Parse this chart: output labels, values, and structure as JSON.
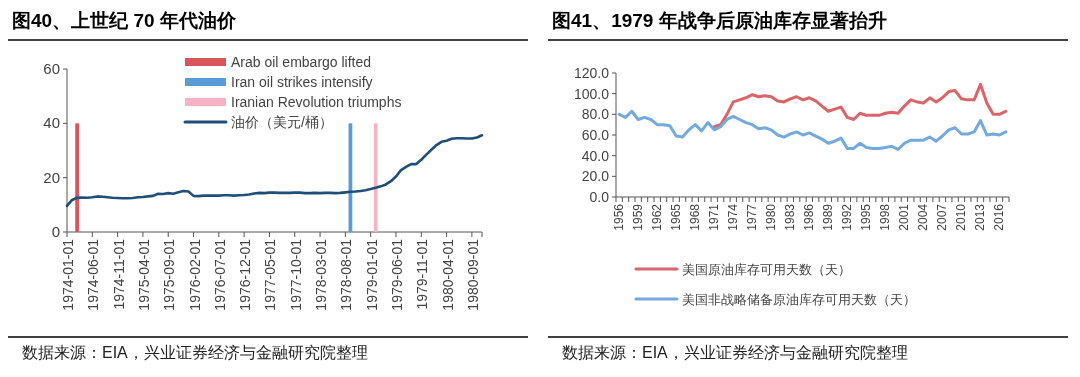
{
  "chart_data": [
    {
      "type": "line",
      "title": "图40、上世纪 70 年代油价",
      "annotations": [
        "数据来源：EIA，兴业证券经济与金融研究院整理"
      ],
      "categories": [
        "1974-01-01",
        null,
        null,
        null,
        null,
        "1974-06-01",
        null,
        null,
        null,
        null,
        "1974-11-01",
        null,
        null,
        null,
        null,
        "1975-04-01",
        null,
        null,
        null,
        null,
        "1975-09-01",
        null,
        null,
        null,
        null,
        "1976-02-01",
        null,
        null,
        null,
        null,
        "1976-07-01",
        null,
        null,
        null,
        null,
        "1976-12-01",
        null,
        null,
        null,
        null,
        "1977-05-01",
        null,
        null,
        null,
        null,
        "1977-10-01",
        null,
        null,
        null,
        null,
        "1978-03-01",
        null,
        null,
        null,
        null,
        "1978-08-01",
        null,
        null,
        null,
        null,
        "1979-01-01",
        null,
        null,
        null,
        null,
        "1979-06-01",
        null,
        null,
        null,
        null,
        "1979-11-01",
        null,
        null,
        null,
        null,
        "1980-04-01",
        null,
        null,
        null,
        null,
        "1980-09-01",
        null,
        null
      ],
      "series": [
        {
          "name": "Arab oil embargo lifted",
          "type": "bar",
          "color": "#d9575a",
          "values": [
            null,
            null,
            40,
            null,
            null,
            null,
            null,
            null,
            null,
            null,
            null,
            null,
            null,
            null,
            null,
            null,
            null,
            null,
            null,
            null,
            null,
            null,
            null,
            null,
            null,
            null,
            null,
            null,
            null,
            null,
            null,
            null,
            null,
            null,
            null,
            null,
            null,
            null,
            null,
            null,
            null,
            null,
            null,
            null,
            null,
            null,
            null,
            null,
            null,
            null,
            null,
            null,
            null,
            null,
            null,
            null,
            null,
            null,
            null,
            null,
            null,
            null,
            null,
            null,
            null,
            null,
            null,
            null,
            null,
            null,
            null,
            null,
            null,
            null,
            null,
            null,
            null,
            null,
            null,
            null,
            null,
            null,
            null
          ]
        },
        {
          "name": "Iran oil strikes intensify",
          "type": "bar",
          "color": "#5b9bd5",
          "values": [
            null,
            null,
            null,
            null,
            null,
            null,
            null,
            null,
            null,
            null,
            null,
            null,
            null,
            null,
            null,
            null,
            null,
            null,
            null,
            null,
            null,
            null,
            null,
            null,
            null,
            null,
            null,
            null,
            null,
            null,
            null,
            null,
            null,
            null,
            null,
            null,
            null,
            null,
            null,
            null,
            null,
            null,
            null,
            null,
            null,
            null,
            null,
            null,
            null,
            null,
            null,
            null,
            null,
            null,
            null,
            null,
            40,
            null,
            null,
            null,
            null,
            null,
            null,
            null,
            null,
            null,
            null,
            null,
            null,
            null,
            null,
            null,
            null,
            null,
            null,
            null,
            null,
            null,
            null,
            null,
            null,
            null,
            null
          ]
        },
        {
          "name": "Iranian Revolution triumphs",
          "type": "bar",
          "color": "#f5b3c3",
          "values": [
            null,
            null,
            null,
            null,
            null,
            null,
            null,
            null,
            null,
            null,
            null,
            null,
            null,
            null,
            null,
            null,
            null,
            null,
            null,
            null,
            null,
            null,
            null,
            null,
            null,
            null,
            null,
            null,
            null,
            null,
            null,
            null,
            null,
            null,
            null,
            null,
            null,
            null,
            null,
            null,
            null,
            null,
            null,
            null,
            null,
            null,
            null,
            null,
            null,
            null,
            null,
            null,
            null,
            null,
            null,
            null,
            null,
            null,
            null,
            null,
            null,
            40,
            null,
            null,
            null,
            null,
            null,
            null,
            null,
            null,
            null,
            null,
            null,
            null,
            null,
            null,
            null,
            null,
            null,
            null,
            null,
            null,
            null
          ]
        },
        {
          "name": "油价（美元/桶）",
          "type": "line",
          "color": "#1f4e79",
          "values": [
            9.6,
            11.8,
            12.6,
            12.7,
            12.6,
            12.8,
            13.1,
            13.0,
            12.8,
            12.6,
            12.5,
            12.4,
            12.4,
            12.5,
            12.8,
            12.9,
            13.1,
            13.3,
            14.1,
            14.0,
            14.3,
            14.1,
            14.6,
            15.1,
            14.9,
            13.3,
            13.2,
            13.4,
            13.4,
            13.4,
            13.4,
            13.5,
            13.5,
            13.4,
            13.5,
            13.6,
            13.8,
            14.2,
            14.4,
            14.3,
            14.5,
            14.5,
            14.4,
            14.4,
            14.4,
            14.5,
            14.5,
            14.3,
            14.3,
            14.4,
            14.3,
            14.4,
            14.4,
            14.3,
            14.4,
            14.6,
            14.8,
            14.9,
            15.1,
            15.4,
            15.8,
            16.3,
            16.8,
            17.5,
            18.7,
            20.4,
            22.8,
            24.0,
            25.0,
            25.0,
            26.6,
            28.5,
            30.3,
            32.0,
            33.2,
            33.6,
            34.3,
            34.5,
            34.5,
            34.4,
            34.4,
            34.8,
            35.6
          ]
        }
      ],
      "ylim": [
        0,
        60
      ],
      "yticks": [
        0,
        20,
        40,
        60
      ],
      "legend": "top",
      "grid": false
    },
    {
      "type": "line",
      "title": "图41、1979 年战争后原油库存显著抬升",
      "annotations": [
        "数据来源：EIA，兴业证券经济与金融研究院整理"
      ],
      "categories": [
        "1956",
        null,
        null,
        "1959",
        null,
        null,
        "1962",
        null,
        null,
        "1965",
        null,
        null,
        "1968",
        null,
        null,
        "1971",
        null,
        null,
        "1974",
        null,
        null,
        "1977",
        null,
        null,
        "1980",
        null,
        null,
        "1983",
        null,
        null,
        "1986",
        null,
        null,
        "1989",
        null,
        null,
        "1992",
        null,
        null,
        "1995",
        null,
        null,
        "1998",
        null,
        null,
        "2001",
        null,
        null,
        "2004",
        null,
        null,
        "2007",
        null,
        null,
        "2010",
        null,
        null,
        "2013",
        null,
        null,
        "2016",
        null
      ],
      "series": [
        {
          "name": "美国原油库存可用天数（天）",
          "color": "#d9646a",
          "values": [
            null,
            null,
            null,
            null,
            null,
            null,
            null,
            null,
            null,
            null,
            null,
            null,
            null,
            null,
            null,
            68,
            70,
            80,
            92,
            94,
            96,
            99,
            97,
            98,
            97,
            93,
            92,
            95,
            97,
            94,
            96,
            93,
            88,
            83,
            85,
            87,
            77,
            75,
            81,
            79,
            79,
            79,
            81,
            82,
            81,
            88,
            94,
            92,
            91,
            96,
            92,
            96,
            102,
            103,
            95,
            94,
            94,
            109,
            91,
            80,
            80,
            83
          ]
        },
        {
          "name": "美国非战略储备原油库存可用天数（天）",
          "color": "#74a9dc",
          "values": [
            80,
            77,
            83,
            75,
            77,
            75,
            70,
            70,
            69,
            59,
            58,
            65,
            70,
            64,
            72,
            65,
            68,
            75,
            78,
            75,
            72,
            70,
            66,
            67,
            65,
            60,
            58,
            61,
            63,
            60,
            62,
            59,
            56,
            52,
            54,
            57,
            47,
            47,
            52,
            48,
            47,
            47,
            48,
            49,
            46,
            52,
            55,
            55,
            55,
            58,
            54,
            59,
            65,
            67,
            61,
            61,
            63,
            74,
            60,
            61,
            60,
            63
          ]
        }
      ],
      "ylim": [
        0,
        120
      ],
      "yticks": [
        {
          "value": 0,
          "label": "0.0"
        },
        {
          "value": 20,
          "label": "20.0"
        },
        {
          "value": 40,
          "label": "40.0"
        },
        {
          "value": 60,
          "label": "60.0"
        },
        {
          "value": 80,
          "label": "80.0"
        },
        {
          "value": 100,
          "label": "100.0"
        },
        {
          "value": 120,
          "label": "120.0"
        }
      ],
      "legend": "bottom",
      "grid": false
    }
  ]
}
